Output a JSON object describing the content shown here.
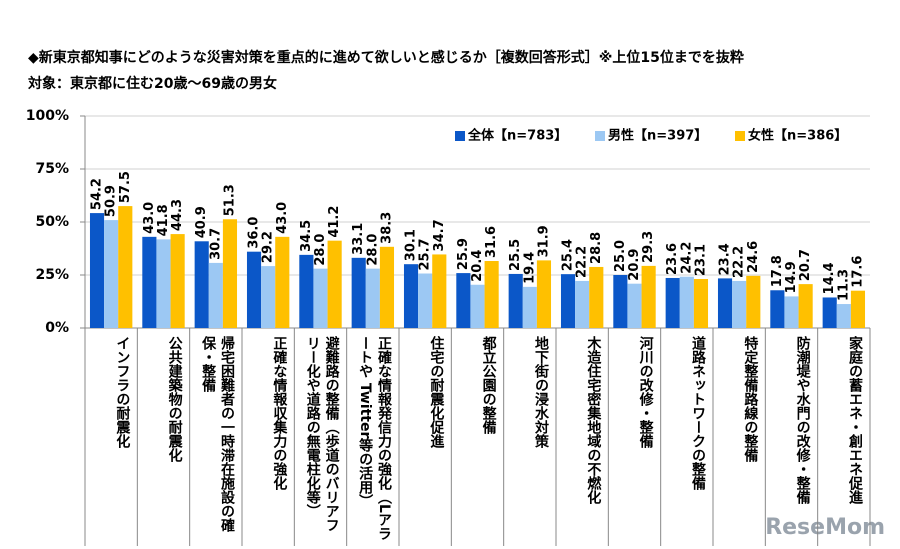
{
  "chart_data": {
    "type": "bar",
    "title": "◆新東京都知事にどのような災害対策を重点的に進めて欲しいと感じるか［複数回答形式］※上位15位までを抜粋",
    "subtitle": "対象：東京都に住む20歳～69歳の男女",
    "watermark": "ReseMom",
    "categories": [
      "インフラの耐震化",
      "公共建築物の耐震化",
      "帰宅困難者の一時滞在施設の確保・整備",
      "正確な情報収集力の強化",
      "避難路の整備（歩道のバリアフリー化や道路の無電柱化等）",
      "正確な情報発信力の強化（Lアラートや Twitter等の活用）",
      "住宅の耐震化促進",
      "都立公園の整備",
      "地下街の浸水対策",
      "木造住宅密集地域の不燃化",
      "河川の改修・整備",
      "道路ネットワークの整備",
      "特定整備路線の整備",
      "防潮堤や水門の改修・整備",
      "家庭の蓄エネ・創エネ促進"
    ],
    "series": [
      {
        "name": "全体【n=783】",
        "color": "#0b57c8",
        "values": [
          54.2,
          43.0,
          40.9,
          36.0,
          34.5,
          33.1,
          30.1,
          25.9,
          25.5,
          25.4,
          25.0,
          23.6,
          23.4,
          17.8,
          14.4
        ],
        "value_labels": [
          "54.2",
          "43.0",
          "40.9",
          "36.0",
          "34.5",
          "33.1",
          "30.1",
          "25.9",
          "25.5",
          "25.4",
          "25.0",
          "23.6",
          "23.4",
          "17.8",
          "14.4"
        ]
      },
      {
        "name": "男性【n=397】",
        "color": "#9cc8f3",
        "values": [
          50.9,
          41.8,
          30.7,
          29.2,
          28.0,
          28.0,
          25.7,
          20.4,
          19.4,
          22.2,
          20.9,
          24.2,
          22.2,
          14.9,
          11.3
        ],
        "value_labels": [
          "50.9",
          "41.8",
          "30.7",
          "29.2",
          "28.0",
          "28.0",
          "25.7",
          "20.4",
          "19.4",
          "22.2",
          "20.9",
          "24.2",
          "22.2",
          "14.9",
          "11.3"
        ]
      },
      {
        "name": "女性【n=386】",
        "color": "#ffc000",
        "values": [
          57.5,
          44.3,
          51.3,
          43.0,
          41.2,
          38.3,
          34.7,
          31.6,
          31.9,
          28.8,
          29.3,
          23.1,
          24.6,
          20.7,
          17.6
        ],
        "value_labels": [
          "57.5",
          "44.3",
          "51.3",
          "43.0",
          "41.2",
          "38.3",
          "34.7",
          "31.6",
          "31.9",
          "28.8",
          "29.3",
          "23.1",
          "24.6",
          "20.7",
          "17.6"
        ]
      }
    ],
    "ylim": [
      0,
      100
    ],
    "yticks": [
      {
        "value": 0,
        "label": "0%"
      },
      {
        "value": 25,
        "label": "25%"
      },
      {
        "value": 50,
        "label": "50%"
      },
      {
        "value": 75,
        "label": "75%"
      },
      {
        "value": 100,
        "label": "100%"
      }
    ],
    "grid": true
  }
}
